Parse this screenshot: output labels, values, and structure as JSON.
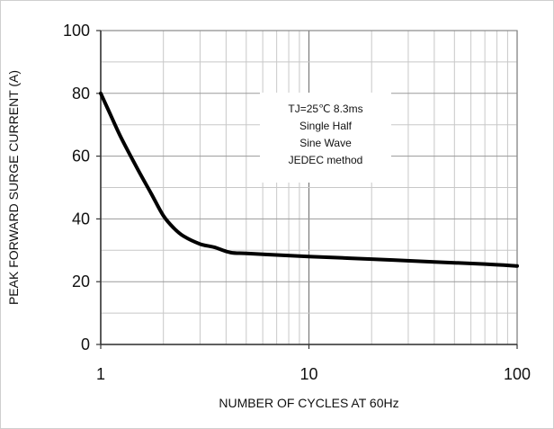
{
  "chart_data": {
    "type": "line",
    "xlabel": "NUMBER OF CYCLES AT 60Hz",
    "ylabel": "PEAK FORWARD SURGE CURRENT (A)",
    "xscale": "log",
    "xlim": [
      1,
      100
    ],
    "ylim": [
      0,
      100
    ],
    "xticks": [
      1,
      10,
      100
    ],
    "xtick_labels": [
      "1",
      "10",
      "100"
    ],
    "yticks": [
      0,
      20,
      40,
      60,
      80,
      100
    ],
    "ytick_labels": [
      "0",
      "20",
      "40",
      "60",
      "80",
      "100"
    ],
    "grid": true,
    "series": [
      {
        "color": "#000000",
        "x": [
          1,
          1.1,
          1.25,
          1.5,
          1.75,
          2,
          2.25,
          2.5,
          3,
          3.5,
          4.2,
          5,
          7,
          10,
          20,
          40,
          70,
          100
        ],
        "y": [
          80,
          74,
          66,
          56,
          48,
          41,
          37,
          34.5,
          32,
          31,
          29.3,
          29,
          28.5,
          28,
          27.2,
          26.3,
          25.6,
          25
        ]
      }
    ],
    "annotation": {
      "lines": [
        "TJ=25℃ 8.3ms",
        "Single Half",
        "Sine Wave",
        "JEDEC method"
      ]
    }
  }
}
